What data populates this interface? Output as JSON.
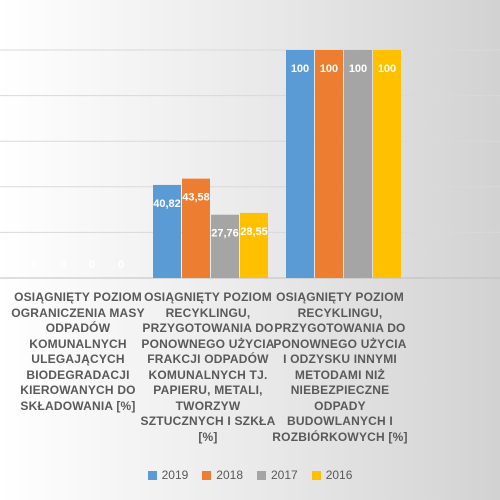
{
  "chart_data": {
    "type": "bar",
    "categories": [
      "OSIĄGNIĘTY POZIOM OGRANICZENIA MASY ODPADÓW KOMUNALNYCH ULEGAJĄCYCH BIODEGRADACJI KIEROWANYCH DO SKŁADOWANIA [%]",
      "OSIĄGNIĘTY POZIOM RECYKLINGU, PRZYGOTOWANIA DO PONOWNEGO UŻYCIA FRAKCJI ODPADÓW KOMUNALNYCH TJ. PAPIERU, METALI, TWORZYW SZTUCZNYCH I SZKŁA [%]",
      "OSIĄGNIĘTY POZIOM RECYKLINGU, PRZYGOTOWANIA DO PONOWNEGO UŻYCIA I ODZYSKU INNYMI METODAMI NIŻ NIEBEZPIECZNE ODPADY BUDOWLANYCH I ROZBIÓRKOWYCH [%]"
    ],
    "series": [
      {
        "name": "2019",
        "color": "#5B9BD5",
        "values": [
          0,
          40.82,
          100
        ],
        "labels": [
          "0",
          "40,82",
          "100"
        ]
      },
      {
        "name": "2018",
        "color": "#ED7D31",
        "values": [
          0,
          43.58,
          100
        ],
        "labels": [
          "0",
          "43,58",
          "100"
        ]
      },
      {
        "name": "2017",
        "color": "#A5A5A5",
        "values": [
          0,
          27.76,
          100
        ],
        "labels": [
          "0",
          "27,76",
          "100"
        ]
      },
      {
        "name": "2016",
        "color": "#FFC000",
        "values": [
          0,
          28.55,
          100
        ],
        "labels": [
          "0",
          "28,55",
          "100"
        ]
      }
    ],
    "ylim": [
      0,
      100
    ],
    "grid": true,
    "legend_position": "bottom",
    "data_label_color": "#ffffff"
  }
}
